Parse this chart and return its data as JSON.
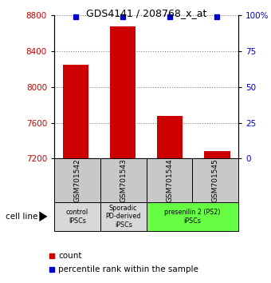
{
  "title": "GDS4141 / 208768_x_at",
  "samples": [
    "GSM701542",
    "GSM701543",
    "GSM701544",
    "GSM701545"
  ],
  "counts": [
    8250,
    8680,
    7680,
    7280
  ],
  "percentiles": [
    99,
    99,
    99,
    99
  ],
  "ylim_left": [
    7200,
    8800
  ],
  "yticks_left": [
    7200,
    7600,
    8000,
    8400,
    8800
  ],
  "ylim_right": [
    0,
    100
  ],
  "yticks_right": [
    0,
    25,
    50,
    75,
    100
  ],
  "bar_color": "#cc0000",
  "percentile_color": "#0000cc",
  "groups": [
    {
      "label": "control\nIPSCs",
      "cols": [
        0
      ],
      "color": "#d8d8d8"
    },
    {
      "label": "Sporadic\nPD-derived\niPSCs",
      "cols": [
        1
      ],
      "color": "#d8d8d8"
    },
    {
      "label": "presenilin 2 (PS2)\niPSCs",
      "cols": [
        2,
        3
      ],
      "color": "#66ff44"
    }
  ],
  "sample_box_color": "#c8c8c8",
  "cell_line_label": "cell line",
  "legend_count_label": "count",
  "legend_percentile_label": "percentile rank within the sample"
}
